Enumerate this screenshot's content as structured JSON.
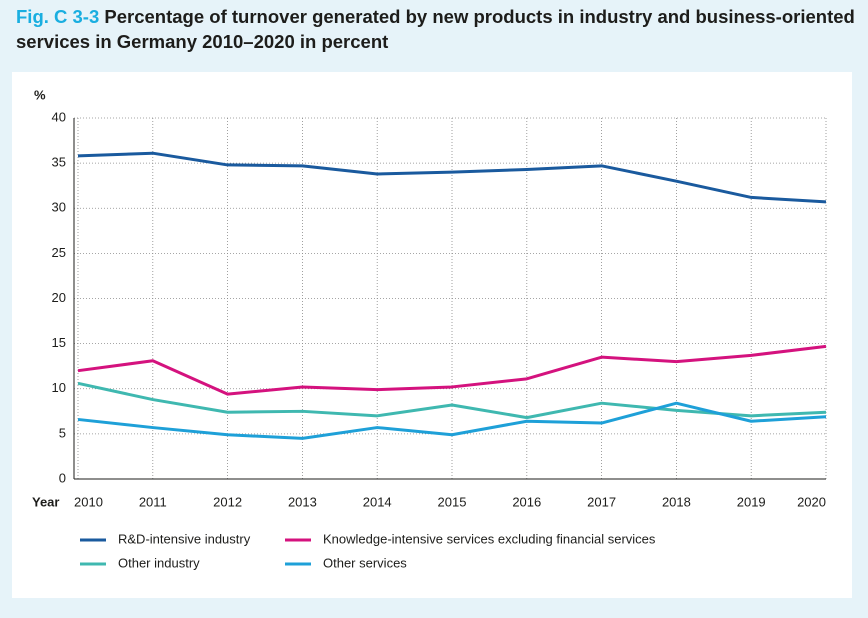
{
  "chart_data": {
    "type": "line",
    "title_prefix": "Fig. C 3-3",
    "title": "Percentage of turnover generated by new products in industry and business-oriented services in Germany 2010–2020 in percent",
    "y_label": "%",
    "x_label": "Year",
    "x": [
      2010,
      2011,
      2012,
      2013,
      2014,
      2015,
      2016,
      2017,
      2018,
      2019,
      2020
    ],
    "xlim": [
      2010,
      2020
    ],
    "xticks": [
      2010,
      2011,
      2012,
      2013,
      2014,
      2015,
      2016,
      2017,
      2018,
      2019,
      2020
    ],
    "ylim": [
      0,
      40
    ],
    "yticks": [
      0,
      5,
      10,
      15,
      20,
      25,
      30,
      35,
      40
    ],
    "grid": true,
    "legend": "bottom",
    "series": [
      {
        "name": "R&D-intensive industry",
        "color": "#1a5a9e",
        "values": [
          35.8,
          36.1,
          34.8,
          34.7,
          33.8,
          34.0,
          34.3,
          34.7,
          33.0,
          31.2,
          30.7
        ]
      },
      {
        "name": "Knowledge-intensive services excluding financial services",
        "color": "#d4127e",
        "values": [
          12.0,
          13.1,
          9.4,
          10.2,
          9.9,
          10.2,
          11.1,
          13.5,
          13.0,
          13.7,
          14.7
        ]
      },
      {
        "name": "Other industry",
        "color": "#3fb8b0",
        "values": [
          10.6,
          8.8,
          7.4,
          7.5,
          7.0,
          8.2,
          6.8,
          8.4,
          7.6,
          7.0,
          7.4
        ]
      },
      {
        "name": "Other services",
        "color": "#1ea0d8",
        "values": [
          6.6,
          5.7,
          4.9,
          4.5,
          5.7,
          4.9,
          6.4,
          6.2,
          8.4,
          6.4,
          6.9
        ]
      }
    ]
  }
}
